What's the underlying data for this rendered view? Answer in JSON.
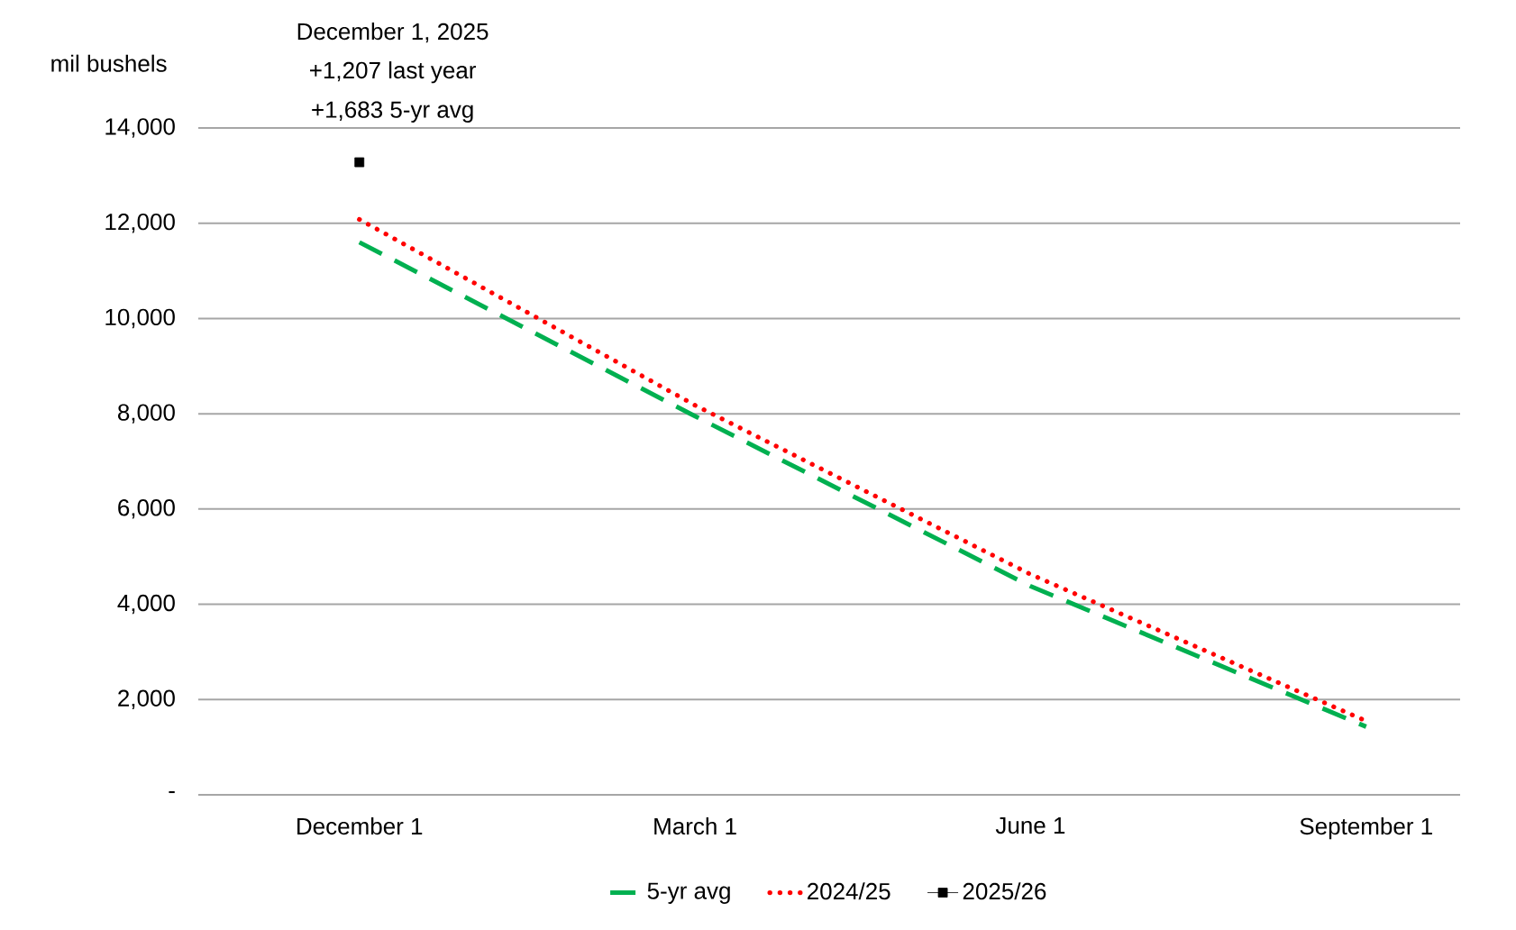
{
  "chart_data": {
    "type": "line",
    "ylabel": "mil bushels",
    "categories": [
      "December 1",
      "March 1",
      "June 1",
      "September 1"
    ],
    "series": [
      {
        "name": "5-yr avg",
        "color": "#00b050",
        "line_style": "dashed",
        "marker": "none",
        "values": [
          11600,
          7950,
          4380,
          1430
        ]
      },
      {
        "name": "2024/25",
        "color": "#ff0000",
        "line_style": "dotted",
        "marker": "none",
        "values": [
          12080,
          8180,
          4630,
          1550
        ]
      },
      {
        "name": "2025/26",
        "color": "#000000",
        "line_style": "solid",
        "marker": "square",
        "values": [
          13280,
          null,
          null,
          null
        ]
      }
    ],
    "ylim": [
      0,
      14000
    ],
    "yticks": [
      {
        "value": 0,
        "label": "-"
      },
      {
        "value": 2000,
        "label": "2,000"
      },
      {
        "value": 4000,
        "label": "4,000"
      },
      {
        "value": 6000,
        "label": "6,000"
      },
      {
        "value": 8000,
        "label": "8,000"
      },
      {
        "value": 10000,
        "label": "10,000"
      },
      {
        "value": 12000,
        "label": "12,000"
      },
      {
        "value": 14000,
        "label": "14,000"
      }
    ],
    "grid": "y",
    "legend": "bottom",
    "annotations": [
      "December 1, 2025",
      "+1,207 last year",
      "+1,683 5-yr avg"
    ]
  }
}
